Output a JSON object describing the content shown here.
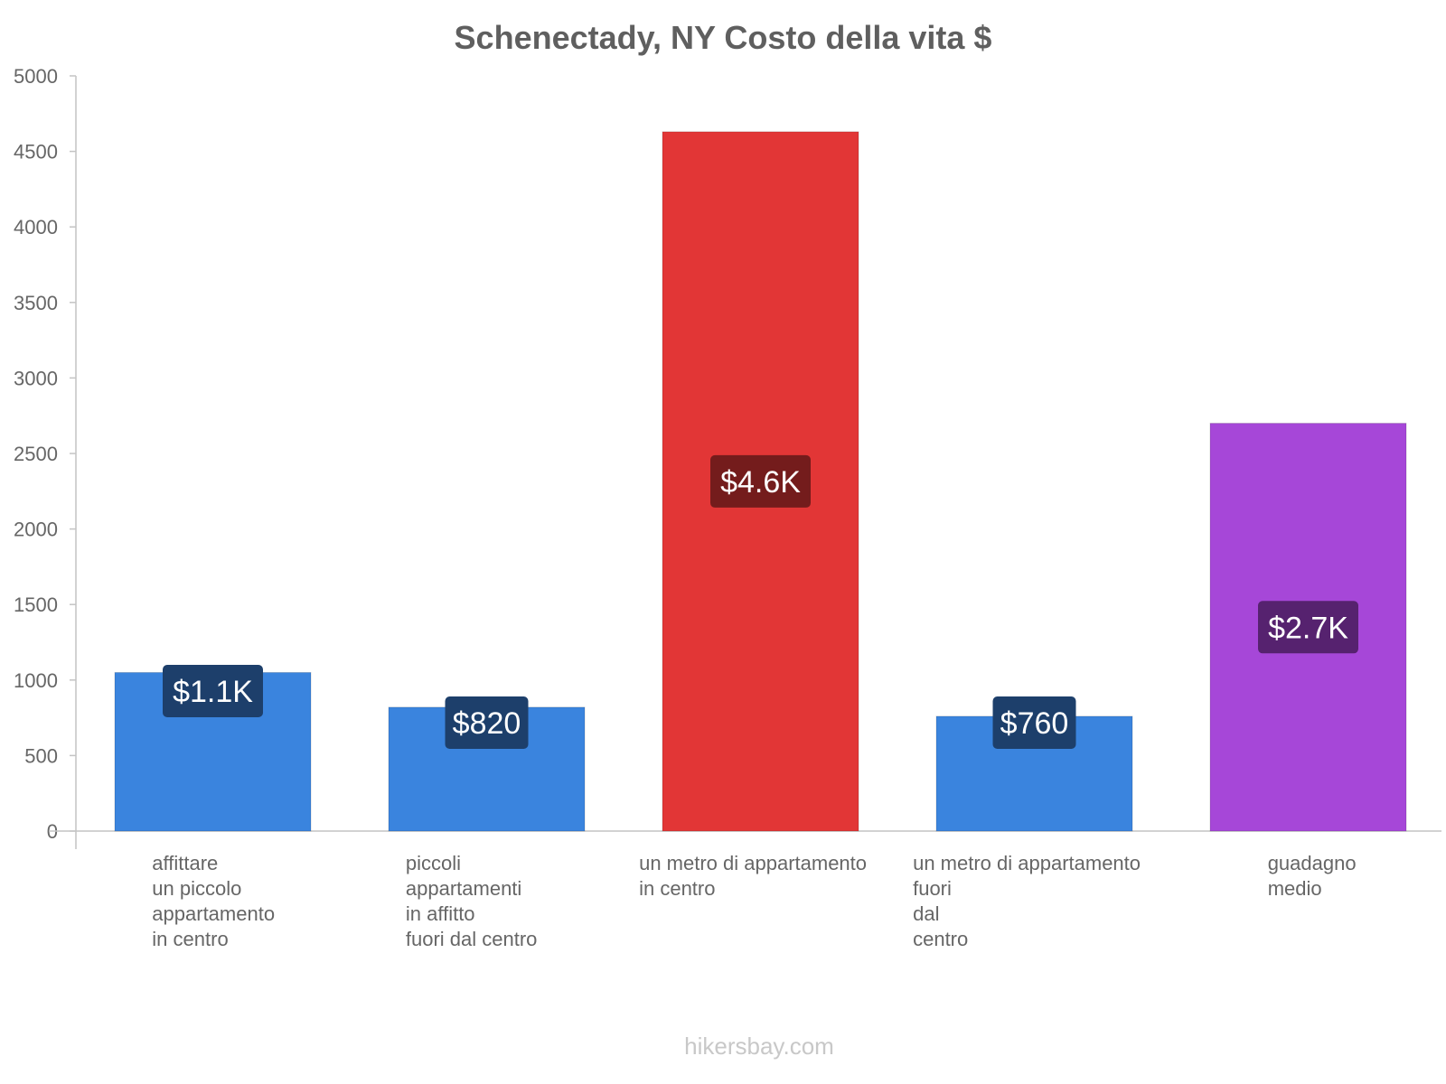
{
  "chart_data": {
    "type": "bar",
    "title": "Schenectady, NY Costo della vita $",
    "ylim": [
      0,
      5000
    ],
    "yticks": [
      0,
      500,
      1000,
      1500,
      2000,
      2500,
      3000,
      3500,
      4000,
      4500,
      5000
    ],
    "categories": [
      [
        "affittare",
        "un piccolo",
        "appartamento",
        "in centro"
      ],
      [
        "piccoli",
        "appartamenti",
        "in affitto",
        "fuori dal centro"
      ],
      [
        "un metro di appartamento",
        "in centro"
      ],
      [
        "un metro di appartamento",
        "fuori",
        "dal",
        "centro"
      ],
      [
        "guadagno",
        "medio"
      ]
    ],
    "values": [
      1050,
      820,
      4630,
      760,
      2700
    ],
    "data_labels": [
      "$1.1K",
      "$820",
      "$4.6K",
      "$760",
      "$2.7K"
    ],
    "colors": [
      "#3a84de",
      "#3a84de",
      "#e23636",
      "#3a84de",
      "#a647d8"
    ],
    "label_bg_colors": [
      "#1d3f6b",
      "#1d3f6b",
      "#741c1c",
      "#1d3f6b",
      "#56226f"
    ],
    "grid": false,
    "legend": "none"
  },
  "watermark": "hikersbay.com"
}
